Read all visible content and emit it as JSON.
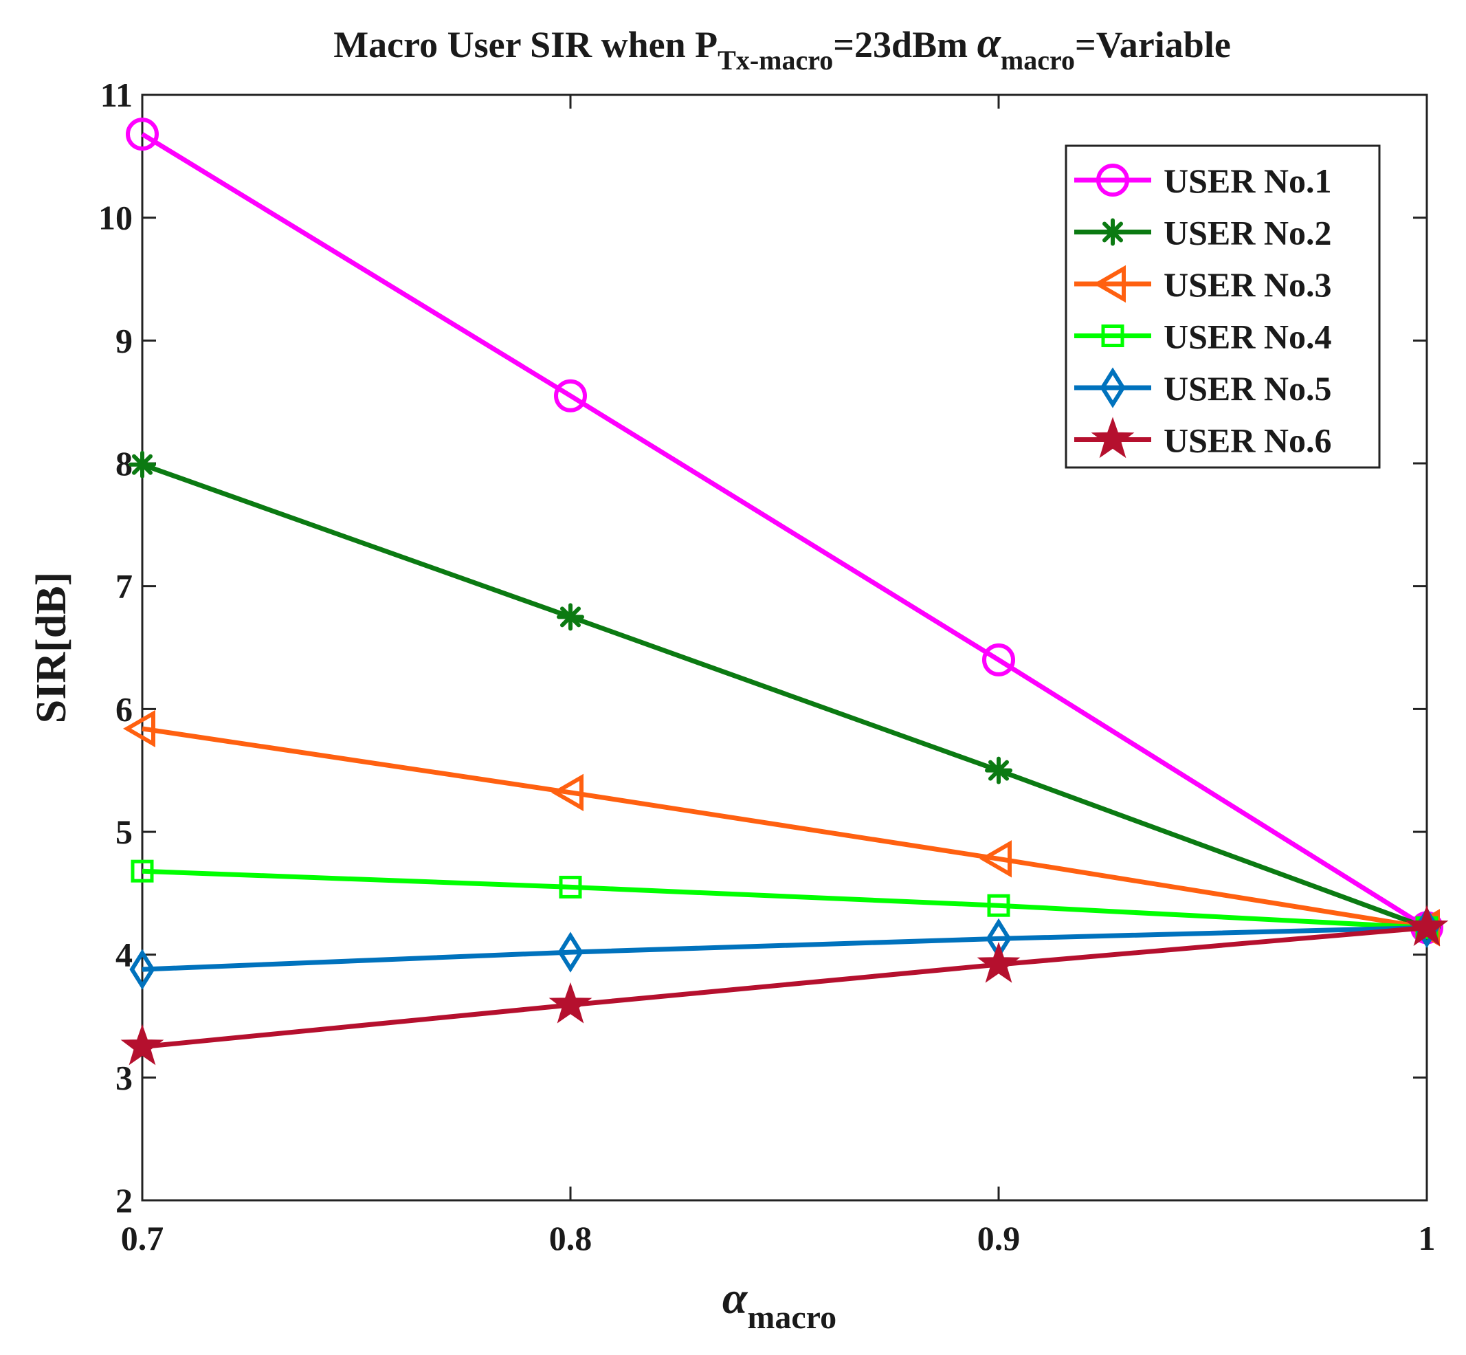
{
  "chart_data": {
    "type": "line",
    "title": {
      "prefix": "Macro User SIR when P",
      "sub1": "Tx-macro",
      "middle": "=23dBm ",
      "alpha": "α",
      "sub2": "macro",
      "suffix": "=Variable"
    },
    "xlabel": {
      "symbol": "α",
      "sub": "macro"
    },
    "ylabel": "SIR[dB]",
    "x": [
      0.7,
      0.8,
      0.9,
      1.0
    ],
    "xlim": [
      0.7,
      1.0
    ],
    "ylim": [
      2,
      11
    ],
    "xticks": [
      "0.7",
      "0.8",
      "0.9",
      "1"
    ],
    "yticks": [
      "2",
      "3",
      "4",
      "5",
      "6",
      "7",
      "8",
      "9",
      "10",
      "11"
    ],
    "grid": false,
    "legend_position": "top-right",
    "series": [
      {
        "name": "USER No.1",
        "color": "#ff00ff",
        "marker": "circle",
        "values": [
          10.68,
          8.55,
          6.4,
          4.22
        ]
      },
      {
        "name": "USER No.2",
        "color": "#0b7a12",
        "marker": "asterisk",
        "values": [
          7.99,
          6.75,
          5.5,
          4.22
        ]
      },
      {
        "name": "USER No.3",
        "color": "#ff6010",
        "marker": "triangle-left",
        "values": [
          5.84,
          5.32,
          4.78,
          4.22
        ]
      },
      {
        "name": "USER No.4",
        "color": "#00ff00",
        "marker": "square",
        "values": [
          4.68,
          4.55,
          4.4,
          4.22
        ]
      },
      {
        "name": "USER No.5",
        "color": "#0072bd",
        "marker": "diamond",
        "values": [
          3.88,
          4.02,
          4.13,
          4.22
        ]
      },
      {
        "name": "USER No.6",
        "color": "#b5102e",
        "marker": "star",
        "values": [
          3.25,
          3.59,
          3.92,
          4.22
        ]
      }
    ]
  }
}
